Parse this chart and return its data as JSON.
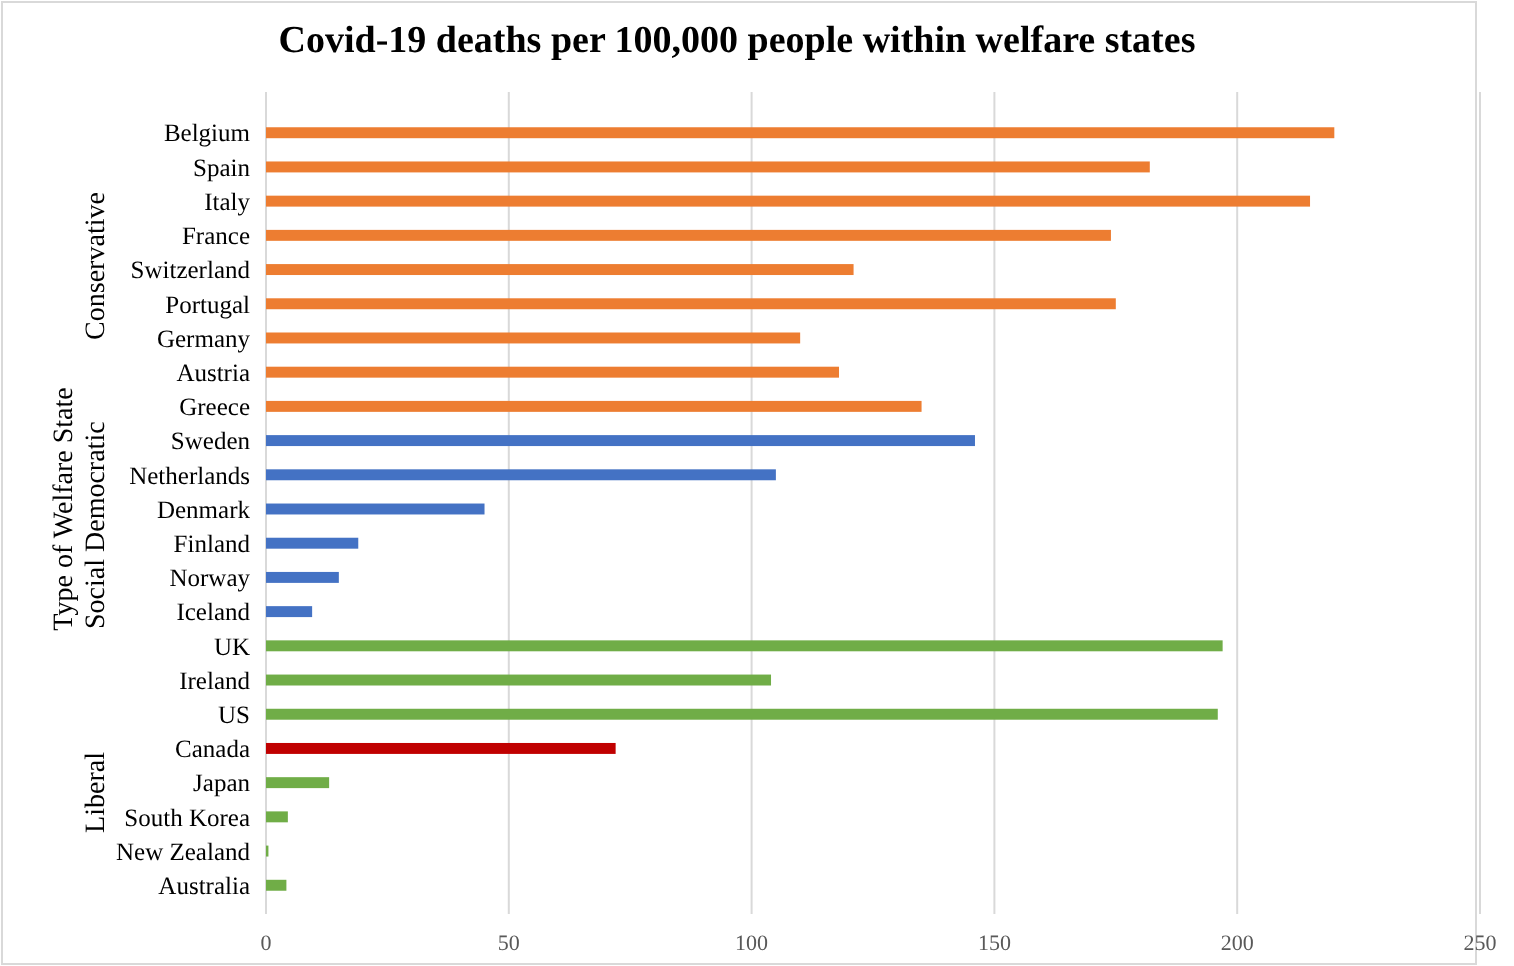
{
  "chart_data": {
    "type": "bar",
    "orientation": "horizontal",
    "title": "Covid-19 deaths per 100,000 people within welfare states",
    "ylabel": "Type of Welfare State",
    "categories": [
      "Belgium",
      "Spain",
      "Italy",
      "France",
      "Switzerland",
      "Portugal",
      "Germany",
      "Austria",
      "Greece",
      "Sweden",
      "Netherlands",
      "Denmark",
      "Finland",
      "Norway",
      "Iceland",
      "UK",
      "Ireland",
      "US",
      "Canada",
      "Japan",
      "South Korea",
      "New Zealand",
      "Australia"
    ],
    "values": [
      220,
      182,
      215,
      174,
      121,
      175,
      110,
      118,
      135,
      146,
      105,
      45,
      19,
      15,
      9.5,
      197,
      104,
      196,
      72,
      13,
      4.5,
      0.5,
      4.2
    ],
    "colors": [
      "#ed7d31",
      "#ed7d31",
      "#ed7d31",
      "#ed7d31",
      "#ed7d31",
      "#ed7d31",
      "#ed7d31",
      "#ed7d31",
      "#ed7d31",
      "#4472c4",
      "#4472c4",
      "#4472c4",
      "#4472c4",
      "#4472c4",
      "#4472c4",
      "#70ad47",
      "#70ad47",
      "#70ad47",
      "#c00000",
      "#70ad47",
      "#70ad47",
      "#70ad47",
      "#70ad47"
    ],
    "xlim": [
      0,
      250
    ],
    "xticks": [
      0,
      50,
      100,
      150,
      200,
      250
    ],
    "grid": "x",
    "annotations": [
      "Conservative",
      "Social Democratic",
      "Liberal"
    ]
  }
}
